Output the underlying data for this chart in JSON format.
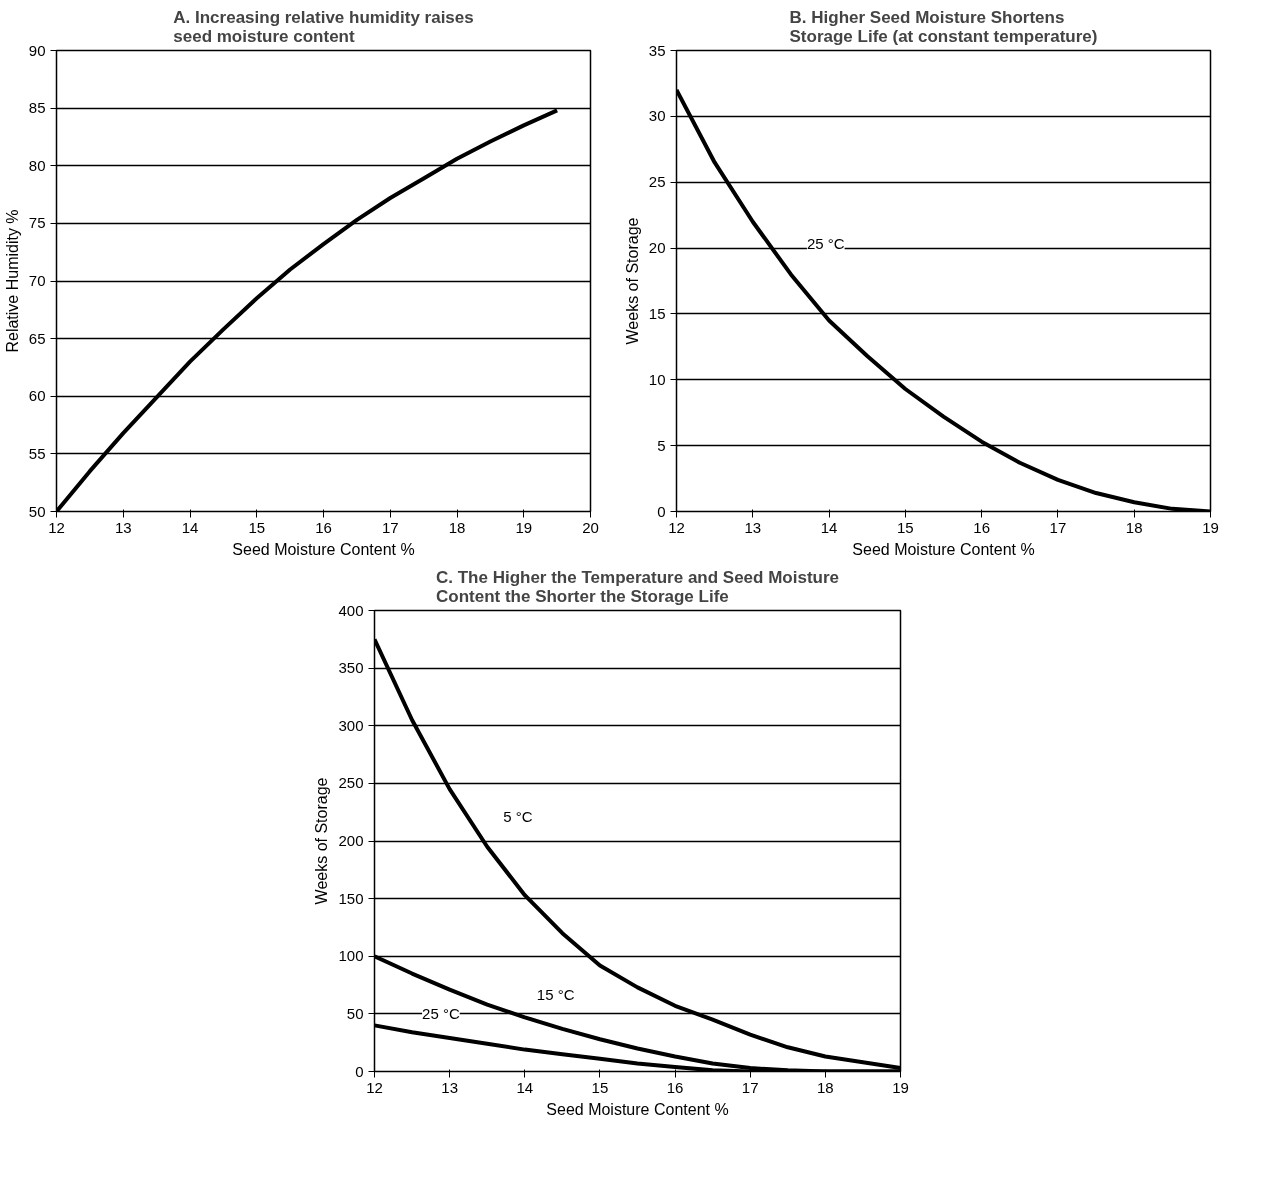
{
  "chart_data": [
    {
      "type": "line",
      "title": "A. Increasing relative humidity raises\nseed moisture content",
      "xlabel": "Seed Moisture Content %",
      "ylabel": "Relative Humidity %",
      "x": [
        12,
        12.5,
        13,
        13.5,
        14,
        14.5,
        15,
        15.5,
        16,
        16.5,
        17,
        17.5,
        18,
        18.5,
        19,
        19.5
      ],
      "series": [
        {
          "color": "#000000",
          "values": [
            50,
            53.5,
            56.8,
            59.9,
            63,
            65.8,
            68.5,
            71,
            73.2,
            75.3,
            77.2,
            78.9,
            80.6,
            82.1,
            83.5,
            84.8
          ]
        }
      ],
      "xlim": [
        12,
        20
      ],
      "ylim": [
        50,
        90
      ],
      "xticks": [
        12,
        13,
        14,
        15,
        16,
        17,
        18,
        19,
        20
      ],
      "yticks": [
        50,
        55,
        60,
        65,
        70,
        75,
        80,
        85,
        90
      ],
      "grid": "y",
      "marker": "none",
      "line_style": "solid"
    },
    {
      "type": "line",
      "title": "B. Higher Seed Moisture Shortens\nStorage Life (at constant temperature)",
      "xlabel": "Seed Moisture Content %",
      "ylabel": "Weeks of Storage",
      "x": [
        12,
        12.5,
        13,
        13.5,
        14,
        14.5,
        15,
        15.5,
        16,
        16.5,
        17,
        17.5,
        18,
        18.5,
        19
      ],
      "series": [
        {
          "name": "25 °C",
          "color": "#000000",
          "values": [
            32,
            26.5,
            22,
            18,
            14.5,
            11.8,
            9.3,
            7.2,
            5.3,
            3.7,
            2.4,
            1.4,
            0.7,
            0.2,
            0
          ]
        }
      ],
      "xlim": [
        12,
        19
      ],
      "ylim": [
        0,
        35
      ],
      "xticks": [
        12,
        13,
        14,
        15,
        16,
        17,
        18,
        19
      ],
      "yticks": [
        0,
        5,
        10,
        15,
        20,
        25,
        30,
        35
      ],
      "grid": "y",
      "marker": "none",
      "line_style": "solid"
    },
    {
      "type": "line",
      "title": "C. The Higher the Temperature and Seed Moisture\nContent the Shorter the Storage Life",
      "xlabel": "Seed Moisture Content %",
      "ylabel": "Weeks of Storage",
      "x": [
        12,
        12.5,
        13,
        13.5,
        14,
        14.5,
        15,
        15.5,
        16,
        16.5,
        17,
        17.5,
        18,
        18.5,
        19
      ],
      "series": [
        {
          "name": "5 °C",
          "color": "#000000",
          "values": [
            375,
            305,
            245,
            195,
            153,
            120,
            92,
            73,
            57,
            45,
            32,
            21,
            13,
            8,
            3
          ]
        },
        {
          "name": "15 °C",
          "color": "#000000",
          "values": [
            100,
            85,
            71,
            58,
            47,
            37,
            28,
            20,
            13,
            7,
            3,
            1,
            0,
            0,
            0
          ]
        },
        {
          "name": "25 °C",
          "color": "#000000",
          "values": [
            40,
            34,
            29,
            24,
            19,
            15,
            11,
            7,
            4,
            1,
            0,
            0,
            0,
            0,
            0
          ]
        }
      ],
      "xlim": [
        12,
        19
      ],
      "ylim": [
        0,
        400
      ],
      "xticks": [
        12,
        13,
        14,
        15,
        16,
        17,
        18,
        19
      ],
      "yticks": [
        0,
        50,
        100,
        150,
        200,
        250,
        300,
        350,
        400
      ],
      "grid": "y",
      "marker": "none",
      "line_style": "solid"
    }
  ]
}
